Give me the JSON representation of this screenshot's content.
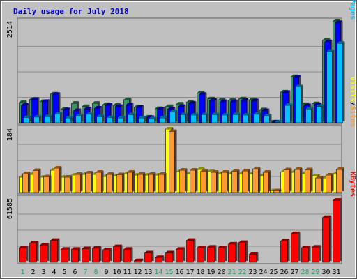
{
  "chart_data": {
    "title": "Daily usage for July 2018",
    "colors": {
      "background": "#c0c0c0",
      "page_fill": "#ffffff",
      "border": "#5f5f5f",
      "gridline": "#8c8c8c",
      "title": "#0000c0",
      "ytick": "#000000",
      "day_weekday": "#000000",
      "day_weekend": "#339966",
      "hits": "#339966",
      "files": "#0000ff",
      "pages": "#00c0ff",
      "visits": "#ffff00",
      "sites": "#ff9933",
      "kbytes": "#ff0000"
    },
    "days": [
      "1",
      "2",
      "3",
      "4",
      "5",
      "6",
      "7",
      "8",
      "9",
      "10",
      "11",
      "12",
      "13",
      "14",
      "15",
      "16",
      "17",
      "18",
      "19",
      "20",
      "21",
      "22",
      "23",
      "24",
      "25",
      "26",
      "27",
      "28",
      "29",
      "30",
      "31"
    ],
    "weekend_days": [
      "1",
      "7",
      "8",
      "14",
      "15",
      "21",
      "22",
      "28",
      "29"
    ],
    "panels": [
      {
        "type": "bar",
        "max_label": "2514",
        "ymax": 2514,
        "legend": [
          {
            "label": "Pages",
            "color": "#00c0ff"
          },
          {
            "label": "Files",
            "color": "#0000ff"
          },
          {
            "label": "Hits",
            "color": "#339966"
          }
        ],
        "series": [
          {
            "name": "Hits",
            "color": "#339966",
            "values": [
              500,
              580,
              525,
              710,
              335,
              480,
              400,
              480,
              450,
              430,
              570,
              390,
              140,
              350,
              400,
              460,
              510,
              735,
              590,
              560,
              555,
              590,
              570,
              320,
              20,
              760,
              1140,
              450,
              470,
              2040,
              2560
            ]
          },
          {
            "name": "Files",
            "color": "#0000ff",
            "values": [
              430,
              580,
              525,
              700,
              320,
              300,
              340,
              360,
              430,
              400,
              440,
              380,
              130,
              340,
              340,
              400,
              480,
              700,
              550,
              520,
              520,
              550,
              540,
              300,
              20,
              750,
              1120,
              420,
              450,
              2000,
              2470
            ]
          },
          {
            "name": "Pages",
            "color": "#00c0ff",
            "values": [
              130,
              140,
              150,
              220,
              120,
              170,
              210,
              150,
              130,
              120,
              200,
              120,
              100,
              120,
              270,
              200,
              190,
              200,
              200,
              190,
              200,
              190,
              210,
              170,
              10,
              430,
              890,
              340,
              400,
              1760,
              1960
            ]
          }
        ]
      },
      {
        "type": "bar",
        "max_label": "184",
        "ymax": 184,
        "legend": [
          {
            "label": "Sites",
            "color": "#ff9933"
          },
          {
            "label": "Visits",
            "color": "#ffff00"
          }
        ],
        "series": [
          {
            "name": "Visits",
            "color": "#ffff00",
            "values": [
              44,
              52,
              44,
              64,
              44,
              50,
              52,
              52,
              46,
              48,
              54,
              50,
              50,
              50,
              182,
              59,
              54,
              66,
              60,
              54,
              54,
              54,
              54,
              48,
              5,
              59,
              58,
              54,
              48,
              42,
              54
            ]
          },
          {
            "name": "Sites",
            "color": "#ff9933",
            "values": [
              54,
              63,
              45,
              70,
              44,
              52,
              56,
              58,
              52,
              51,
              58,
              52,
              52,
              52,
              175,
              64,
              64,
              61,
              58,
              58,
              61,
              62,
              67,
              58,
              5,
              65,
              66,
              65,
              42,
              50,
              66
            ]
          }
        ]
      },
      {
        "type": "bar",
        "max_label": "61585",
        "ymax": 61585,
        "legend": [
          {
            "label": "KBytes",
            "color": "#ff0000"
          }
        ],
        "series": [
          {
            "name": "KBytes",
            "color": "#ff0000",
            "values": [
              14000,
              18500,
              16500,
              21000,
              12500,
              12500,
              13000,
              13500,
              12000,
              15000,
              12500,
              1500,
              9000,
              4500,
              9000,
              12500,
              21000,
              14000,
              14500,
              14000,
              17500,
              19000,
              7700,
              0,
              0,
              20500,
              27500,
              14000,
              14500,
              43000,
              59500
            ]
          }
        ]
      }
    ]
  }
}
